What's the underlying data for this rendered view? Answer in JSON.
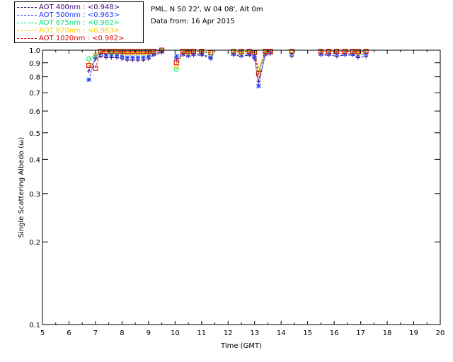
{
  "header": {
    "site_line": "PML, N 50 22', W 04 08', Alt 0m",
    "date_line": "Data from: 16 Apr 2015"
  },
  "legend": [
    {
      "label": "AOT  400nm : <0.948>",
      "color": "#3c0a78"
    },
    {
      "label": "AOT  500nm : <0.963>",
      "color": "#1a3cff"
    },
    {
      "label": "AOT  675nm : <0.982>",
      "color": "#00e07a"
    },
    {
      "label": "AOT  870nm : <0.983>",
      "color": "#ffcc00"
    },
    {
      "label": "AOT 1020nm : <0.982>",
      "color": "#d40000"
    }
  ],
  "chart_data": {
    "type": "scatter",
    "xlabel": "Time (GMT)",
    "ylabel": "Single Scattering Albedo (ω)",
    "xlim": [
      5,
      20
    ],
    "ylim": [
      0.1,
      1.0
    ],
    "yscale": "log",
    "xticks": [
      5,
      6,
      7,
      8,
      9,
      10,
      11,
      12,
      13,
      14,
      15,
      16,
      17,
      18,
      19,
      20
    ],
    "yticks": [
      0.1,
      0.2,
      0.3,
      0.4,
      0.5,
      0.6,
      0.7,
      0.8,
      0.9,
      1.0
    ],
    "ytick_labels": [
      "0.1",
      "0.2",
      "0.3",
      "0.4",
      "0.5",
      "0.6",
      "0.7",
      "0.8",
      "0.9",
      "1.0"
    ],
    "grid": false,
    "series": [
      {
        "name": "AOT  400nm : <0.948>",
        "color": "#3c0a78",
        "marker": "plus",
        "x": [
          6.75,
          7.0,
          7.2,
          7.4,
          7.6,
          7.8,
          8.0,
          8.2,
          8.4,
          8.6,
          8.8,
          9.0,
          9.2,
          9.5,
          10.05,
          10.3,
          10.5,
          10.7,
          11.0,
          11.35,
          12.2,
          12.5,
          12.8,
          13.0,
          13.15,
          13.4,
          13.6,
          14.4,
          15.5,
          15.8,
          16.1,
          16.4,
          16.7,
          16.9,
          17.2
        ],
        "y": [
          0.84,
          0.93,
          0.95,
          0.94,
          0.94,
          0.94,
          0.93,
          0.92,
          0.92,
          0.92,
          0.92,
          0.93,
          0.96,
          0.98,
          0.93,
          0.96,
          0.95,
          0.96,
          0.96,
          0.93,
          0.96,
          0.95,
          0.96,
          0.93,
          0.77,
          0.96,
          0.97,
          0.95,
          0.96,
          0.96,
          0.95,
          0.96,
          0.96,
          0.94,
          0.95
        ]
      },
      {
        "name": "AOT  500nm : <0.963>",
        "color": "#1a3cff",
        "marker": "asterisk",
        "x": [
          6.75,
          7.0,
          7.2,
          7.4,
          7.6,
          7.8,
          8.0,
          8.2,
          8.4,
          8.6,
          8.8,
          9.0,
          9.2,
          9.5,
          10.05,
          10.3,
          10.5,
          10.7,
          11.0,
          11.35,
          12.2,
          12.5,
          12.8,
          13.0,
          13.15,
          13.4,
          13.6,
          14.4,
          15.5,
          15.8,
          16.1,
          16.4,
          16.7,
          16.9,
          17.2
        ],
        "y": [
          0.78,
          0.95,
          0.97,
          0.96,
          0.96,
          0.96,
          0.95,
          0.94,
          0.94,
          0.94,
          0.94,
          0.95,
          0.97,
          0.99,
          0.95,
          0.97,
          0.96,
          0.97,
          0.97,
          0.94,
          0.97,
          0.96,
          0.97,
          0.95,
          0.74,
          0.97,
          0.98,
          0.97,
          0.97,
          0.97,
          0.97,
          0.97,
          0.97,
          0.96,
          0.97
        ]
      },
      {
        "name": "AOT  675nm : <0.982>",
        "color": "#00e07a",
        "marker": "circle",
        "x": [
          6.75,
          7.0,
          7.2,
          7.4,
          7.6,
          7.8,
          8.0,
          8.2,
          8.4,
          8.6,
          8.8,
          9.0,
          9.2,
          9.5,
          10.05,
          10.3,
          10.5,
          10.7,
          11.0,
          11.35,
          12.2,
          12.5,
          12.8,
          13.0,
          13.15,
          13.4,
          13.6,
          14.4,
          15.5,
          15.8,
          16.1,
          16.4,
          16.7,
          16.9,
          17.2
        ],
        "y": [
          0.93,
          0.96,
          0.99,
          0.99,
          0.98,
          0.98,
          0.98,
          0.98,
          0.98,
          0.98,
          0.98,
          0.98,
          0.99,
          1.0,
          0.85,
          0.99,
          0.98,
          0.99,
          0.99,
          0.97,
          0.99,
          0.98,
          0.99,
          0.98,
          0.83,
          0.99,
          0.99,
          0.99,
          0.99,
          0.99,
          0.99,
          0.99,
          0.99,
          0.98,
          0.99
        ]
      },
      {
        "name": "AOT  870nm : <0.983>",
        "color": "#ffcc00",
        "marker": "triangle",
        "x": [
          6.75,
          7.0,
          7.2,
          7.4,
          7.6,
          7.8,
          8.0,
          8.2,
          8.4,
          8.6,
          8.8,
          9.0,
          9.2,
          9.5,
          10.05,
          10.3,
          10.5,
          10.7,
          11.0,
          11.35,
          12.2,
          12.5,
          12.8,
          13.0,
          13.15,
          13.4,
          13.6,
          14.4,
          15.5,
          15.8,
          16.1,
          16.4,
          16.7,
          16.9,
          17.2
        ],
        "y": [
          0.89,
          0.97,
          0.99,
          0.99,
          0.99,
          0.99,
          0.98,
          0.98,
          0.98,
          0.98,
          0.98,
          0.98,
          0.99,
          1.0,
          0.88,
          0.99,
          0.98,
          0.99,
          0.99,
          0.98,
          0.99,
          0.98,
          0.99,
          0.98,
          0.86,
          0.99,
          0.99,
          0.99,
          0.99,
          0.99,
          0.99,
          0.99,
          0.99,
          0.98,
          0.99
        ]
      },
      {
        "name": "AOT 1020nm : <0.982>",
        "color": "#d40000",
        "marker": "square",
        "x": [
          6.75,
          7.0,
          7.2,
          7.4,
          7.6,
          7.8,
          8.0,
          8.2,
          8.4,
          8.6,
          8.8,
          9.0,
          9.2,
          9.5,
          10.05,
          10.3,
          10.5,
          10.7,
          11.0,
          11.35,
          12.2,
          12.5,
          12.8,
          13.0,
          13.15,
          13.4,
          13.6,
          14.4,
          15.5,
          15.8,
          16.1,
          16.4,
          16.7,
          16.9,
          17.2
        ],
        "y": [
          0.88,
          0.86,
          0.99,
          0.99,
          0.99,
          0.99,
          0.99,
          0.99,
          0.99,
          0.99,
          0.99,
          0.99,
          0.99,
          1.0,
          0.9,
          0.99,
          0.99,
          0.99,
          0.99,
          0.98,
          0.99,
          0.99,
          0.99,
          0.98,
          0.82,
          0.99,
          0.99,
          0.99,
          0.99,
          0.99,
          0.99,
          0.99,
          0.99,
          0.99,
          0.99
        ]
      }
    ]
  }
}
